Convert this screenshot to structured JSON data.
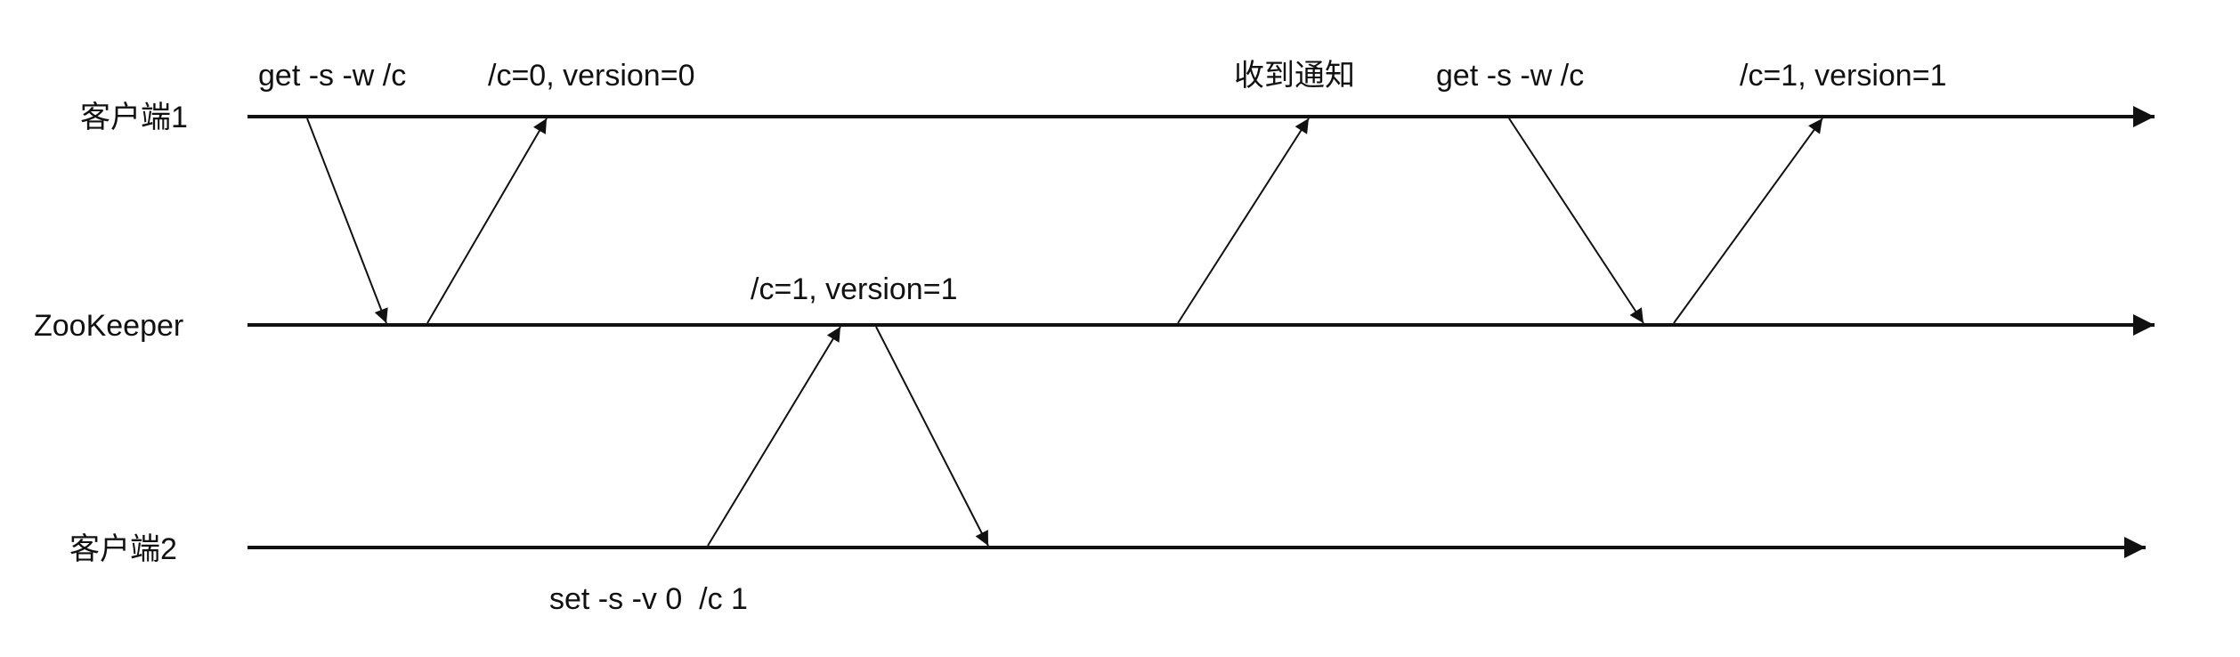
{
  "diagram": {
    "type": "sequence-timeline",
    "colors": {
      "line": "#111111",
      "background": "#ffffff"
    },
    "lanes": [
      {
        "id": "client1",
        "label": "客户端1"
      },
      {
        "id": "zookeeper",
        "label": "ZooKeeper"
      },
      {
        "id": "client2",
        "label": "客户端2"
      }
    ],
    "messages": [
      {
        "id": "m1",
        "from": "client1",
        "to": "zookeeper",
        "label": "get -s -w /c"
      },
      {
        "id": "m2",
        "from": "zookeeper",
        "to": "client1",
        "label": "/c=0, version=0"
      },
      {
        "id": "m3",
        "from": "client2",
        "to": "zookeeper",
        "label": "set -s -v 0  /c 1"
      },
      {
        "id": "m4",
        "from": "zookeeper",
        "to": "client2",
        "label": "/c=1, version=1"
      },
      {
        "id": "m5",
        "from": "zookeeper",
        "to": "client1",
        "label": "收到通知"
      },
      {
        "id": "m6",
        "from": "client1",
        "to": "zookeeper",
        "label": "get -s -w /c"
      },
      {
        "id": "m7",
        "from": "zookeeper",
        "to": "client1",
        "label": "/c=1, version=1"
      }
    ]
  }
}
